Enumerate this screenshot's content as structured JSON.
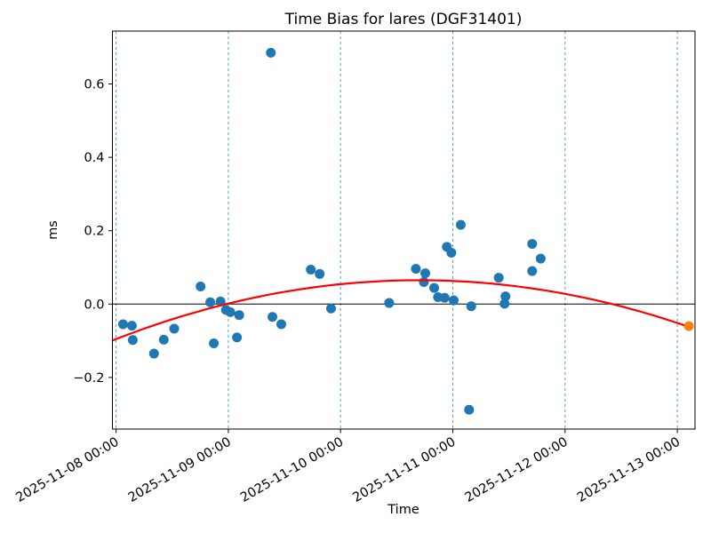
{
  "window": {
    "kind": "matplotlib-figure",
    "background": "#ffffff"
  },
  "chart_data": {
    "type": "scatter",
    "title": "Time Bias for lares (DGF31401)",
    "xlabel": "Time",
    "ylabel": "ms",
    "x_axis": {
      "unit": "days since 2025-11-08 00:00",
      "tick_positions_days": [
        0,
        1,
        2,
        3,
        4,
        5
      ],
      "tick_labels": [
        "2025-11-08 00:00",
        "2025-11-09 00:00",
        "2025-11-10 00:00",
        "2025-11-11 00:00",
        "2025-11-12 00:00",
        "2025-11-13 00:00"
      ],
      "lim_days": [
        -0.03,
        5.16
      ],
      "grid_style": "dashed-vertical",
      "grid_color": "#5b9fc9"
    },
    "y_axis": {
      "ticks": [
        -0.2,
        0.0,
        0.2,
        0.4,
        0.6
      ],
      "lim": [
        -0.341,
        0.744
      ]
    },
    "zero_line_y": 0.0,
    "series": [
      {
        "name": "time-bias-observations",
        "color": "#1f77b4",
        "marker": "circle",
        "points": [
          {
            "time": "2025-11-08 01:29",
            "t": 0.062,
            "ms": -0.055
          },
          {
            "time": "2025-11-08 03:23",
            "t": 0.141,
            "ms": -0.059
          },
          {
            "time": "2025-11-08 03:35",
            "t": 0.149,
            "ms": -0.098
          },
          {
            "time": "2025-11-08 08:07",
            "t": 0.338,
            "ms": -0.135
          },
          {
            "time": "2025-11-08 10:12",
            "t": 0.425,
            "ms": -0.097
          },
          {
            "time": "2025-11-08 12:26",
            "t": 0.518,
            "ms": -0.067
          },
          {
            "time": "2025-11-08 18:04",
            "t": 0.753,
            "ms": 0.048
          },
          {
            "time": "2025-11-08 20:08",
            "t": 0.839,
            "ms": 0.005
          },
          {
            "time": "2025-11-08 20:54",
            "t": 0.871,
            "ms": -0.107
          },
          {
            "time": "2025-11-08 22:21",
            "t": 0.931,
            "ms": 0.007
          },
          {
            "time": "2025-11-08 23:30",
            "t": 0.979,
            "ms": -0.016
          },
          {
            "time": "2025-11-09 00:26",
            "t": 1.018,
            "ms": -0.022
          },
          {
            "time": "2025-11-09 01:51",
            "t": 1.077,
            "ms": -0.091
          },
          {
            "time": "2025-11-09 02:20",
            "t": 1.097,
            "ms": -0.03
          },
          {
            "time": "2025-11-09 09:06",
            "t": 1.379,
            "ms": 0.685
          },
          {
            "time": "2025-11-09 09:26",
            "t": 1.393,
            "ms": -0.035
          },
          {
            "time": "2025-11-09 11:20",
            "t": 1.472,
            "ms": -0.055
          },
          {
            "time": "2025-11-09 17:38",
            "t": 1.735,
            "ms": 0.094
          },
          {
            "time": "2025-11-09 19:32",
            "t": 1.814,
            "ms": 0.082
          },
          {
            "time": "2025-11-09 21:58",
            "t": 1.915,
            "ms": -0.012
          },
          {
            "time": "2025-11-10 10:24",
            "t": 2.433,
            "ms": 0.003
          },
          {
            "time": "2025-11-10 16:06",
            "t": 2.671,
            "ms": 0.096
          },
          {
            "time": "2025-11-10 17:48",
            "t": 2.742,
            "ms": 0.06
          },
          {
            "time": "2025-11-10 18:07",
            "t": 2.755,
            "ms": 0.084
          },
          {
            "time": "2025-11-10 20:01",
            "t": 2.834,
            "ms": 0.044
          },
          {
            "time": "2025-11-10 20:50",
            "t": 2.868,
            "ms": 0.019
          },
          {
            "time": "2025-11-10 22:14",
            "t": 2.927,
            "ms": 0.017
          },
          {
            "time": "2025-11-10 22:44",
            "t": 2.947,
            "ms": 0.156
          },
          {
            "time": "2025-11-10 23:41",
            "t": 2.987,
            "ms": 0.14
          },
          {
            "time": "2025-11-11 00:12",
            "t": 3.008,
            "ms": 0.01
          },
          {
            "time": "2025-11-11 01:42",
            "t": 3.071,
            "ms": 0.216
          },
          {
            "time": "2025-11-11 03:29",
            "t": 3.145,
            "ms": -0.288
          },
          {
            "time": "2025-11-11 03:56",
            "t": 3.164,
            "ms": -0.006
          },
          {
            "time": "2025-11-11 09:49",
            "t": 3.409,
            "ms": 0.072
          },
          {
            "time": "2025-11-11 11:04",
            "t": 3.461,
            "ms": 0.001
          },
          {
            "time": "2025-11-11 11:15",
            "t": 3.469,
            "ms": 0.021
          },
          {
            "time": "2025-11-11 16:58",
            "t": 3.707,
            "ms": 0.164
          },
          {
            "time": "2025-11-11 16:58",
            "t": 3.707,
            "ms": 0.09
          },
          {
            "time": "2025-11-11 18:48",
            "t": 3.783,
            "ms": 0.124
          }
        ]
      },
      {
        "name": "predicted-bias",
        "color": "#ff7f0e",
        "marker": "circle",
        "points": [
          {
            "time": "2025-11-13 02:28",
            "t": 5.103,
            "ms": -0.06
          }
        ]
      }
    ],
    "fit_curve": {
      "name": "quadratic-fit",
      "color": "#ff0000",
      "model": "ms = peak_ms + a * (t - t_peak)^2",
      "a": -0.022,
      "t_peak": 2.7,
      "peak_ms": 0.065,
      "t_range": [
        -0.03,
        5.103
      ]
    }
  }
}
